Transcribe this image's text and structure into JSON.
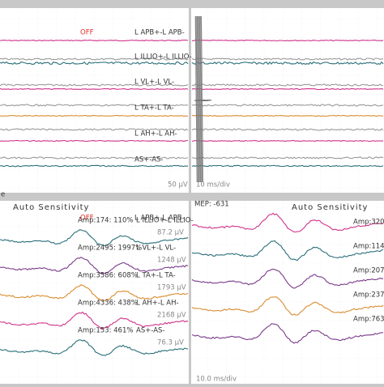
{
  "top_left": {
    "status": "OFF",
    "channels": [
      "L APB+-L APB-",
      "L ILLIO+-L ILLIO-",
      "L VL+-L VL-",
      "L TA+-L TA-",
      "L AH+-L AH-",
      "AS+-AS-"
    ],
    "scale": "50 µV"
  },
  "top_right": {
    "timebase": "10 ms/div"
  },
  "divider_label": "e",
  "bottom_left": {
    "title": "Auto Sensitivity",
    "status": "OFF",
    "first_channel": "L APB+-L APB-",
    "rows": [
      {
        "amp": "Amp:174: 110%",
        "channel": "L ILLIO+-L ILLIO-",
        "scale": "87.2 µV"
      },
      {
        "amp": "Amp:2495: 1997%",
        "channel": "L VL+-L VL-",
        "scale": "1248 µV"
      },
      {
        "amp": "Amp:3586: 608%",
        "channel": "L TA+-L TA-",
        "scale": "1793 µV"
      },
      {
        "amp": "Amp:4336: 438%",
        "channel": "L AH+-L AH-",
        "scale": "2168 µV"
      },
      {
        "amp": "Amp:153: 461%",
        "channel": "AS+-AS-",
        "scale": "76.3 µV"
      }
    ]
  },
  "bottom_right": {
    "mep": "MEP: -631",
    "title": "Auto Sensitivity",
    "amps": [
      "Amp:320",
      "Amp:114",
      "Amp:207",
      "Amp:237",
      "Amp:763"
    ],
    "timebase": "10.0 ms/div"
  }
}
